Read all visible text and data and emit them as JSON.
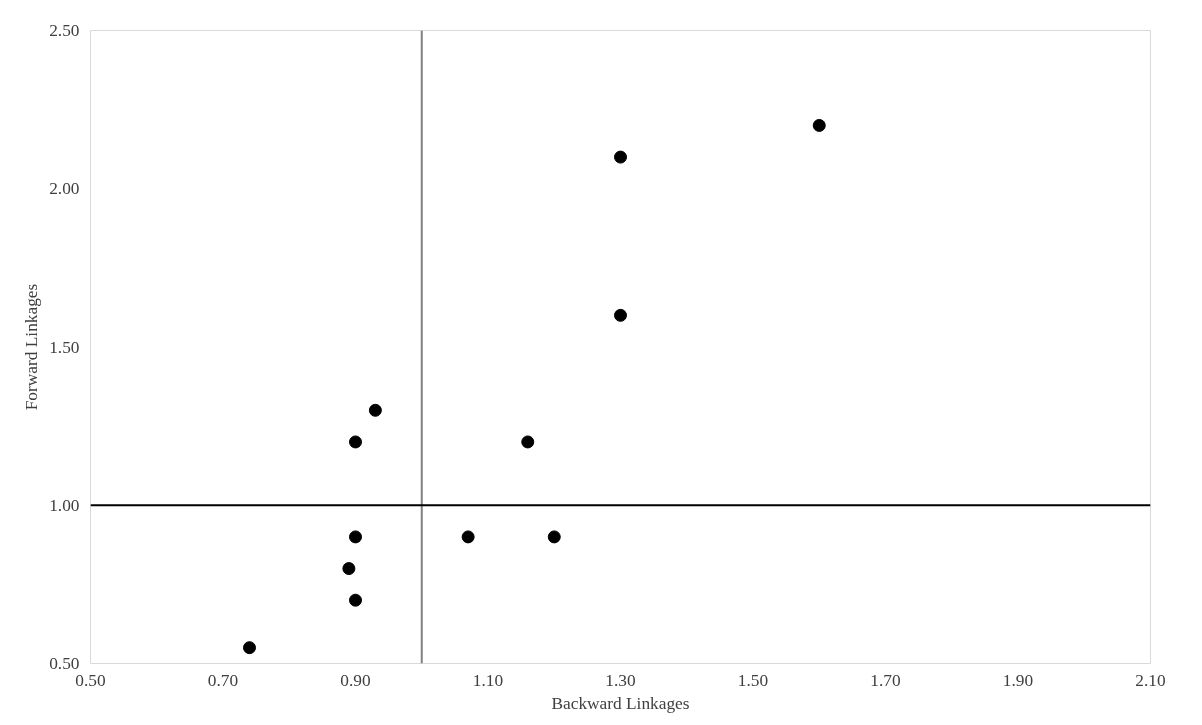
{
  "chart_data": {
    "type": "scatter",
    "xlabel": "Backward Linkages",
    "ylabel": "Forward Linkages",
    "x": [
      0.74,
      0.93,
      0.9,
      1.16,
      0.9,
      0.89,
      0.9,
      1.07,
      1.2,
      1.3,
      1.3,
      1.6
    ],
    "series": [
      {
        "color": "#000000",
        "values": [
          0.55,
          1.3,
          1.2,
          1.2,
          0.9,
          0.8,
          0.7,
          0.9,
          0.9,
          2.1,
          1.6,
          2.2
        ]
      }
    ],
    "xlim": [
      0.5,
      2.1
    ],
    "xticks": [
      {
        "value": 0.5,
        "label": "0.50"
      },
      {
        "value": 0.7,
        "label": "0.70"
      },
      {
        "value": 0.9,
        "label": "0.90"
      },
      {
        "value": 1.1,
        "label": "1.10"
      },
      {
        "value": 1.3,
        "label": "1.30"
      },
      {
        "value": 1.5,
        "label": "1.50"
      },
      {
        "value": 1.7,
        "label": "1.70"
      },
      {
        "value": 1.9,
        "label": "1.90"
      },
      {
        "value": 2.1,
        "label": "2.10"
      }
    ],
    "ylim": [
      0.5,
      2.5
    ],
    "yticks": [
      {
        "value": 0.5,
        "label": "0.50"
      },
      {
        "value": 1.0,
        "label": "1.00"
      },
      {
        "value": 1.5,
        "label": "1.50"
      },
      {
        "value": 2.0,
        "label": "2.00"
      },
      {
        "value": 2.5,
        "label": "2.50"
      }
    ],
    "ref_lines": [
      {
        "axis": "x",
        "value": 1.0,
        "color": "#808080"
      },
      {
        "axis": "y",
        "value": 1.0,
        "color": "#000000"
      }
    ],
    "grid": false,
    "marker": "circle"
  }
}
